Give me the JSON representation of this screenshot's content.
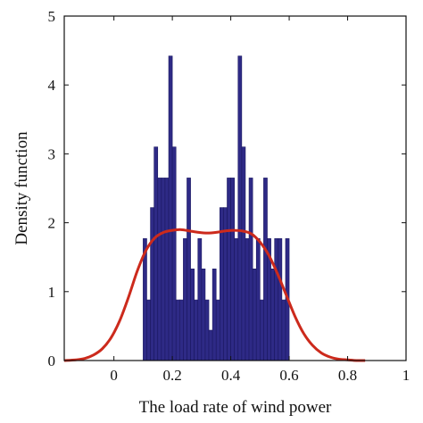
{
  "chart_data": {
    "type": "bar",
    "xlabel": "The load rate of wind power",
    "ylabel": "Density function",
    "xlim": [
      -0.17,
      1.0
    ],
    "ylim": [
      0,
      5
    ],
    "xticks": [
      "0",
      "0.2",
      "0.4",
      "0.6",
      "0.8",
      "1"
    ],
    "yticks": [
      "0",
      "1",
      "2",
      "3",
      "4",
      "5"
    ],
    "grid": false,
    "colors": {
      "bars": "#2e2a86",
      "bar_edge": "#1a1760",
      "curve": "#cc2a1c"
    },
    "histogram": {
      "bin_width": 0.0125,
      "bins": [
        {
          "x0": 0.1,
          "value": 1.77
        },
        {
          "x0": 0.1125,
          "value": 0.88
        },
        {
          "x0": 0.125,
          "value": 2.22
        },
        {
          "x0": 0.1375,
          "value": 3.1
        },
        {
          "x0": 0.15,
          "value": 2.65
        },
        {
          "x0": 0.1625,
          "value": 2.65
        },
        {
          "x0": 0.175,
          "value": 2.65
        },
        {
          "x0": 0.1875,
          "value": 4.42
        },
        {
          "x0": 0.2,
          "value": 3.1
        },
        {
          "x0": 0.2125,
          "value": 0.88
        },
        {
          "x0": 0.225,
          "value": 0.88
        },
        {
          "x0": 0.2375,
          "value": 1.77
        },
        {
          "x0": 0.25,
          "value": 2.65
        },
        {
          "x0": 0.2625,
          "value": 1.33
        },
        {
          "x0": 0.275,
          "value": 0.88
        },
        {
          "x0": 0.2875,
          "value": 1.77
        },
        {
          "x0": 0.3,
          "value": 1.33
        },
        {
          "x0": 0.3125,
          "value": 0.88
        },
        {
          "x0": 0.325,
          "value": 0.44
        },
        {
          "x0": 0.3375,
          "value": 1.33
        },
        {
          "x0": 0.35,
          "value": 0.88
        },
        {
          "x0": 0.3625,
          "value": 2.22
        },
        {
          "x0": 0.375,
          "value": 2.22
        },
        {
          "x0": 0.3875,
          "value": 2.65
        },
        {
          "x0": 0.4,
          "value": 2.65
        },
        {
          "x0": 0.4125,
          "value": 1.77
        },
        {
          "x0": 0.425,
          "value": 4.42
        },
        {
          "x0": 0.4375,
          "value": 3.1
        },
        {
          "x0": 0.45,
          "value": 1.77
        },
        {
          "x0": 0.4625,
          "value": 2.65
        },
        {
          "x0": 0.475,
          "value": 1.33
        },
        {
          "x0": 0.4875,
          "value": 1.77
        },
        {
          "x0": 0.5,
          "value": 0.88
        },
        {
          "x0": 0.5125,
          "value": 2.65
        },
        {
          "x0": 0.525,
          "value": 1.77
        },
        {
          "x0": 0.5375,
          "value": 1.33
        },
        {
          "x0": 0.55,
          "value": 1.77
        },
        {
          "x0": 0.5625,
          "value": 1.77
        },
        {
          "x0": 0.575,
          "value": 0.88
        },
        {
          "x0": 0.5875,
          "value": 1.77
        }
      ]
    },
    "density_curve": {
      "x": [
        -0.17,
        -0.13,
        -0.1,
        -0.07,
        -0.04,
        -0.01,
        0.02,
        0.05,
        0.08,
        0.11,
        0.14,
        0.17,
        0.2,
        0.23,
        0.26,
        0.29,
        0.32,
        0.35,
        0.38,
        0.41,
        0.44,
        0.47,
        0.5,
        0.53,
        0.56,
        0.59,
        0.62,
        0.65,
        0.68,
        0.71,
        0.74,
        0.77,
        0.8,
        0.83,
        0.86
      ],
      "y": [
        0.0,
        0.01,
        0.03,
        0.08,
        0.17,
        0.33,
        0.58,
        0.92,
        1.3,
        1.6,
        1.78,
        1.86,
        1.89,
        1.9,
        1.88,
        1.86,
        1.85,
        1.86,
        1.88,
        1.89,
        1.88,
        1.84,
        1.72,
        1.53,
        1.26,
        0.95,
        0.64,
        0.39,
        0.22,
        0.11,
        0.05,
        0.02,
        0.01,
        0.0,
        0.0
      ]
    }
  }
}
